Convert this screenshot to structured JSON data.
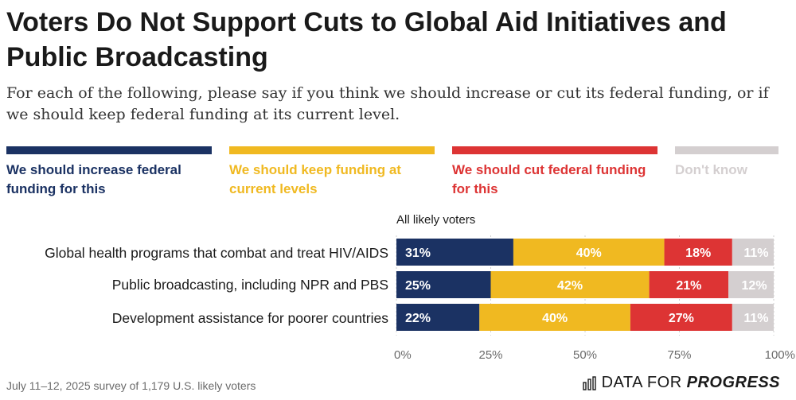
{
  "chart_data": {
    "type": "bar",
    "orientation": "horizontal",
    "stacked": true,
    "title": "Voters Do Not Support Cuts to Global Aid Initiatives and Public Broadcasting",
    "subtitle": "For each of the following, please say if you think we should increase or cut its federal funding, or if we should keep federal funding at its current level.",
    "group_label": "All likely voters",
    "categories": [
      "Global health programs that combat and treat HIV/AIDS",
      "Public broadcasting, including NPR and PBS",
      "Development assistance for poorer countries"
    ],
    "series": [
      {
        "name": "We should increase federal funding for this",
        "color": "#1b3263",
        "label_color": "#ffffff",
        "values": [
          31,
          25,
          22
        ]
      },
      {
        "name": "We should keep funding at current levels",
        "color": "#f0b921",
        "label_color": "#ffffff",
        "values": [
          40,
          42,
          40
        ]
      },
      {
        "name": "We should cut federal funding for this",
        "color": "#dd3434",
        "label_color": "#ffffff",
        "values": [
          18,
          21,
          27
        ]
      },
      {
        "name": "Don't know",
        "color": "#d4cfd0",
        "label_color": "#ffffff",
        "values": [
          11,
          12,
          11
        ]
      }
    ],
    "value_labels": [
      [
        "31%",
        "40%",
        "18%",
        "11%"
      ],
      [
        "25%",
        "42%",
        "21%",
        "12%"
      ],
      [
        "22%",
        "40%",
        "27%",
        "11%"
      ]
    ],
    "x_ticks": [
      0,
      25,
      50,
      75,
      100
    ],
    "x_tick_labels": [
      "0%",
      "25%",
      "50%",
      "75%",
      "100%"
    ],
    "xlim": [
      0,
      100
    ],
    "legend_text_colors": [
      "#1b3263",
      "#f0b921",
      "#dd3434",
      "#d4cfd0"
    ]
  },
  "footer": {
    "source": "July 11–12, 2025 survey of 1,179 U.S. likely voters",
    "brand_main": "DATA FOR",
    "brand_strong": "PROGRESS"
  }
}
